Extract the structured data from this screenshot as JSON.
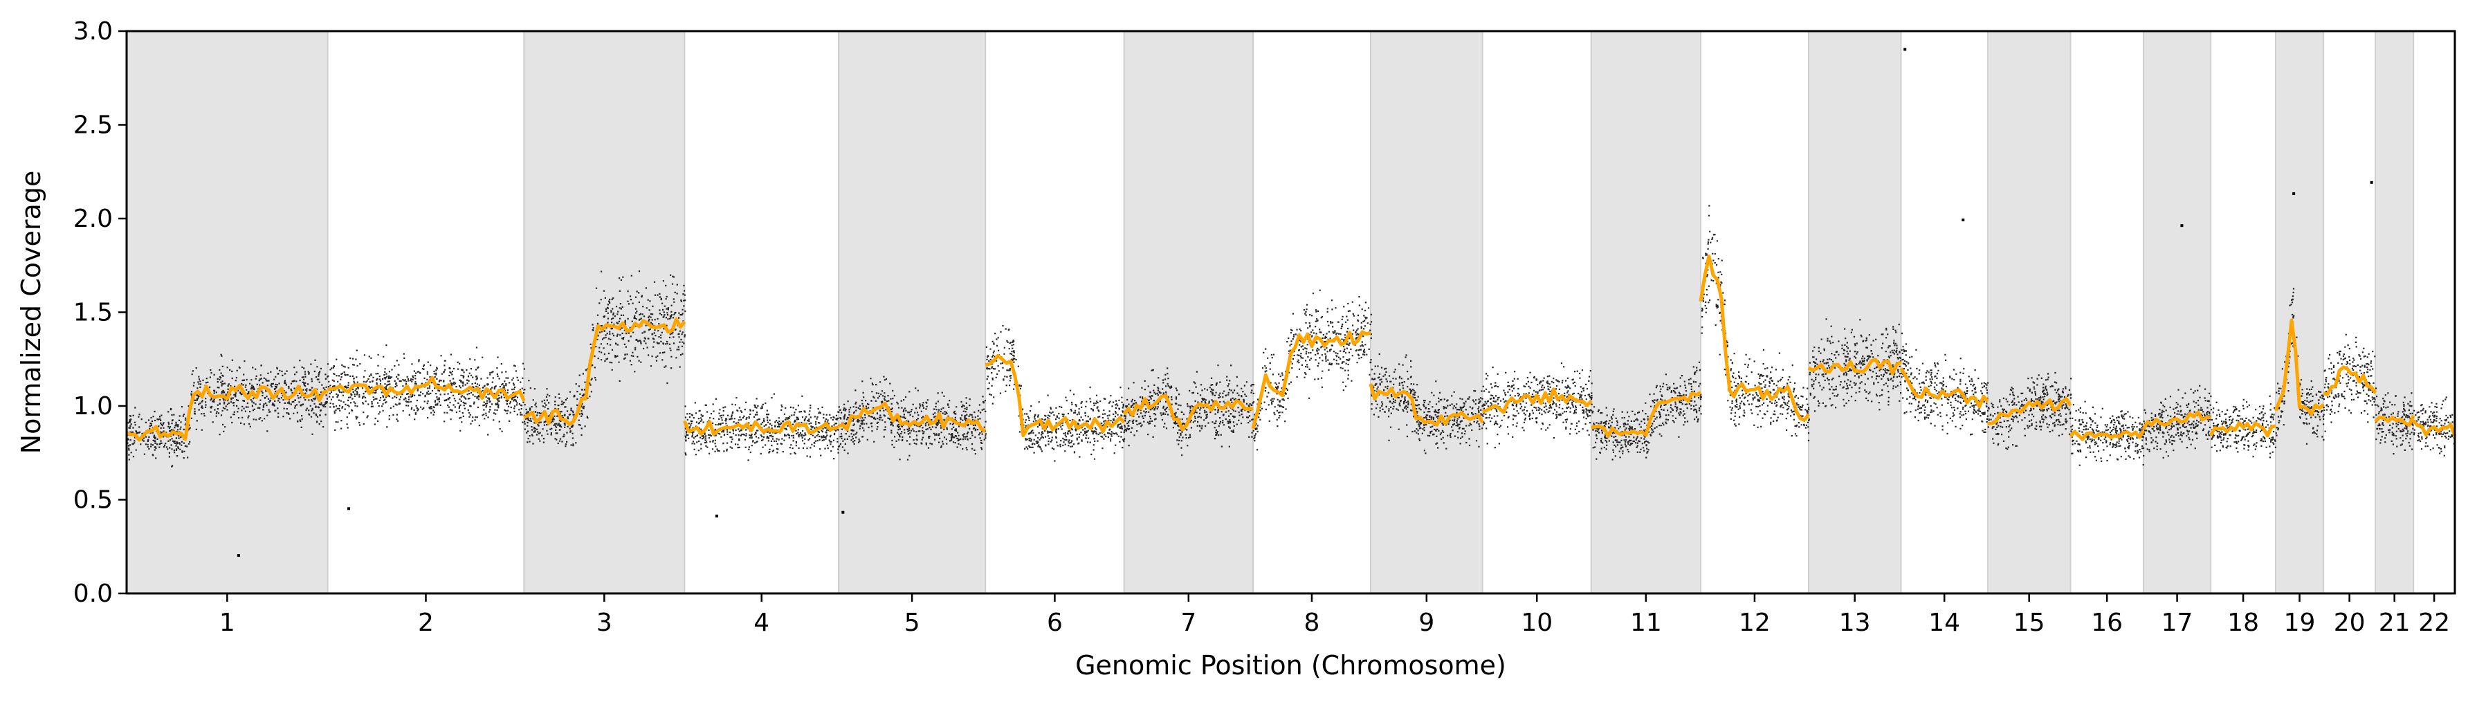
{
  "chart_data": {
    "type": "scatter",
    "title": "",
    "xlabel": "Genomic Position (Chromosome)",
    "ylabel": "Normalized Coverage",
    "ylim": [
      0,
      3.0
    ],
    "yticks": [
      "0.0",
      "0.5",
      "1.0",
      "1.5",
      "2.0",
      "2.5",
      "3.0"
    ],
    "grid": false,
    "legend": "none",
    "colors": {
      "points": "#000000",
      "segments": "#FFA500",
      "band": "#e4e4e4",
      "band_edge": "#cfcfcf",
      "axes": "#000000"
    },
    "chromosomes": [
      {
        "label": "1",
        "length_mb": 248,
        "shaded": true,
        "profile": [
          [
            0,
            0.85
          ],
          [
            0.3,
            0.85
          ],
          [
            0.32,
            1.06
          ],
          [
            0.6,
            1.06
          ],
          [
            0.62,
            1.08
          ],
          [
            1.0,
            1.06
          ]
        ]
      },
      {
        "label": "2",
        "length_mb": 242,
        "shaded": false,
        "profile": [
          [
            0,
            1.08
          ],
          [
            0.5,
            1.1
          ],
          [
            1.0,
            1.05
          ]
        ]
      },
      {
        "label": "3",
        "length_mb": 198,
        "shaded": true,
        "profile": [
          [
            0,
            0.93
          ],
          [
            0.3,
            0.93
          ],
          [
            0.38,
            1.05
          ],
          [
            0.45,
            1.42
          ],
          [
            1.0,
            1.45
          ]
        ]
      },
      {
        "label": "4",
        "length_mb": 190,
        "shaded": false,
        "profile": [
          [
            0,
            0.88
          ],
          [
            1.0,
            0.89
          ]
        ]
      },
      {
        "label": "5",
        "length_mb": 181,
        "shaded": true,
        "profile": [
          [
            0,
            0.88
          ],
          [
            0.2,
            0.96
          ],
          [
            0.3,
            1.02
          ],
          [
            0.38,
            0.92
          ],
          [
            1.0,
            0.9
          ]
        ]
      },
      {
        "label": "6",
        "length_mb": 171,
        "shaded": false,
        "profile": [
          [
            0,
            1.22
          ],
          [
            0.2,
            1.25
          ],
          [
            0.27,
            0.88
          ],
          [
            1.0,
            0.92
          ]
        ]
      },
      {
        "label": "7",
        "length_mb": 159,
        "shaded": true,
        "profile": [
          [
            0,
            0.95
          ],
          [
            0.35,
            1.05
          ],
          [
            0.45,
            0.85
          ],
          [
            0.55,
            1.0
          ],
          [
            1.0,
            1.0
          ]
        ]
      },
      {
        "label": "8",
        "length_mb": 145,
        "shaded": false,
        "profile": [
          [
            0,
            0.85
          ],
          [
            0.1,
            1.15
          ],
          [
            0.25,
            1.05
          ],
          [
            0.35,
            1.35
          ],
          [
            1.0,
            1.38
          ]
        ]
      },
      {
        "label": "9",
        "length_mb": 138,
        "shaded": true,
        "profile": [
          [
            0,
            1.08
          ],
          [
            0.35,
            1.05
          ],
          [
            0.45,
            0.92
          ],
          [
            1.0,
            0.95
          ]
        ]
      },
      {
        "label": "10",
        "length_mb": 134,
        "shaded": false,
        "profile": [
          [
            0,
            0.98
          ],
          [
            0.5,
            1.05
          ],
          [
            1.0,
            1.02
          ]
        ]
      },
      {
        "label": "11",
        "length_mb": 135,
        "shaded": true,
        "profile": [
          [
            0,
            0.88
          ],
          [
            0.5,
            0.85
          ],
          [
            0.6,
            1.02
          ],
          [
            1.0,
            1.05
          ]
        ]
      },
      {
        "label": "12",
        "length_mb": 133,
        "shaded": false,
        "profile": [
          [
            0,
            1.6
          ],
          [
            0.08,
            1.8
          ],
          [
            0.18,
            1.62
          ],
          [
            0.26,
            1.08
          ],
          [
            0.85,
            1.05
          ],
          [
            0.9,
            0.95
          ],
          [
            1.0,
            0.95
          ]
        ]
      },
      {
        "label": "13",
        "length_mb": 114,
        "shaded": true,
        "profile": [
          [
            0,
            1.2
          ],
          [
            1.0,
            1.22
          ]
        ]
      },
      {
        "label": "14",
        "length_mb": 107,
        "shaded": false,
        "profile": [
          [
            0,
            1.22
          ],
          [
            0.2,
            1.05
          ],
          [
            0.5,
            1.08
          ],
          [
            1.0,
            1.02
          ]
        ]
      },
      {
        "label": "15",
        "length_mb": 102,
        "shaded": true,
        "profile": [
          [
            0,
            0.92
          ],
          [
            0.5,
            1.0
          ],
          [
            1.0,
            1.02
          ]
        ]
      },
      {
        "label": "16",
        "length_mb": 90,
        "shaded": false,
        "profile": [
          [
            0,
            0.85
          ],
          [
            1.0,
            0.85
          ]
        ]
      },
      {
        "label": "17",
        "length_mb": 83,
        "shaded": true,
        "profile": [
          [
            0,
            0.88
          ],
          [
            1.0,
            0.95
          ]
        ]
      },
      {
        "label": "18",
        "length_mb": 80,
        "shaded": false,
        "profile": [
          [
            0,
            0.88
          ],
          [
            1.0,
            0.88
          ]
        ]
      },
      {
        "label": "19",
        "length_mb": 59,
        "shaded": true,
        "profile": [
          [
            0,
            0.95
          ],
          [
            0.2,
            1.1
          ],
          [
            0.35,
            1.5
          ],
          [
            0.5,
            1.0
          ],
          [
            1.0,
            0.98
          ]
        ]
      },
      {
        "label": "20",
        "length_mb": 64,
        "shaded": false,
        "profile": [
          [
            0,
            1.05
          ],
          [
            0.4,
            1.2
          ],
          [
            1.0,
            1.08
          ]
        ]
      },
      {
        "label": "21",
        "length_mb": 47,
        "shaded": true,
        "profile": [
          [
            0,
            0.92
          ],
          [
            1.0,
            0.92
          ]
        ]
      },
      {
        "label": "22",
        "length_mb": 51,
        "shaded": false,
        "profile": [
          [
            0,
            0.9
          ],
          [
            1.0,
            0.88
          ]
        ]
      }
    ],
    "outliers": [
      {
        "chrom": "1",
        "pos": 0.55,
        "y": 0.21
      },
      {
        "chrom": "2",
        "pos": 0.1,
        "y": 0.46
      },
      {
        "chrom": "4",
        "pos": 0.2,
        "y": 0.42
      },
      {
        "chrom": "5",
        "pos": 0.02,
        "y": 0.44
      },
      {
        "chrom": "14",
        "pos": 0.03,
        "y": 2.91
      },
      {
        "chrom": "14",
        "pos": 0.7,
        "y": 2.0
      },
      {
        "chrom": "17",
        "pos": 0.55,
        "y": 1.97
      },
      {
        "chrom": "19",
        "pos": 0.35,
        "y": 2.14
      },
      {
        "chrom": "20",
        "pos": 0.9,
        "y": 2.2
      }
    ]
  }
}
